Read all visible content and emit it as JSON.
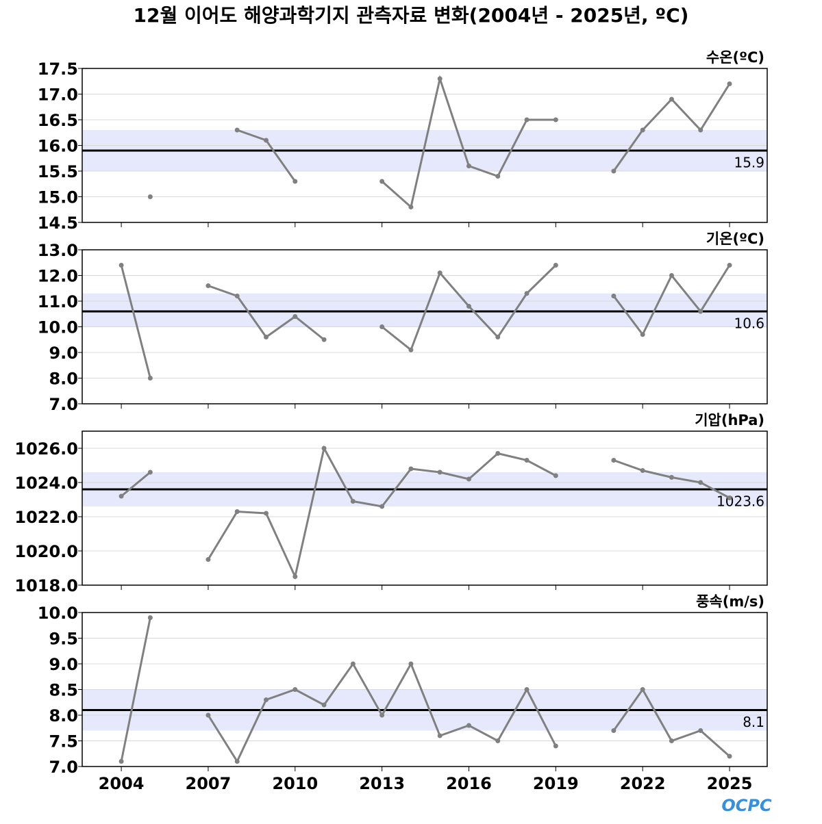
{
  "title": "12월 이어도 해양과학기지 관측자료 변화(2004년 - 2025년, ºC)",
  "logo": "OCPC",
  "chart_data": [
    {
      "type": "line",
      "title": "수온(ºC)",
      "color": "#808080",
      "mean": 15.9,
      "band": [
        15.5,
        16.3
      ],
      "band_color": "#e6e8fc",
      "grid": true,
      "x": [
        2004,
        2005,
        2006,
        2007,
        2008,
        2009,
        2010,
        2011,
        2012,
        2013,
        2014,
        2015,
        2016,
        2017,
        2018,
        2019,
        2020,
        2021,
        2022,
        2023,
        2024,
        2025
      ],
      "values": [
        null,
        15.0,
        null,
        null,
        16.3,
        16.1,
        15.3,
        null,
        null,
        15.3,
        14.8,
        17.3,
        15.6,
        15.4,
        16.5,
        16.5,
        null,
        15.5,
        16.3,
        16.9,
        16.3,
        17.2
      ],
      "xlim": [
        2002.65,
        2026.3
      ],
      "xticks": [
        2004,
        2007,
        2010,
        2013,
        2016,
        2019,
        2022,
        2025
      ],
      "ylim": [
        14.5,
        17.5
      ],
      "yticks": [
        14.5,
        {
          "value": 15,
          "label": "15.0"
        },
        15.5,
        {
          "value": 16,
          "label": "16.0"
        },
        16.5,
        {
          "value": 17,
          "label": "17.0"
        },
        17.5
      ]
    },
    {
      "type": "line",
      "title": "기온(ºC)",
      "color": "#808080",
      "mean": 10.6,
      "band": [
        10.0,
        11.3
      ],
      "band_color": "#e6e8fc",
      "grid": true,
      "x": [
        2004,
        2005,
        2006,
        2007,
        2008,
        2009,
        2010,
        2011,
        2012,
        2013,
        2014,
        2015,
        2016,
        2017,
        2018,
        2019,
        2020,
        2021,
        2022,
        2023,
        2024,
        2025
      ],
      "values": [
        12.4,
        8.0,
        null,
        11.6,
        11.2,
        9.6,
        10.4,
        9.5,
        null,
        10.0,
        9.1,
        12.1,
        10.8,
        9.6,
        11.3,
        12.4,
        null,
        11.2,
        9.7,
        12.0,
        10.6,
        12.4
      ],
      "xlim": [
        2002.65,
        2026.3
      ],
      "xticks": [
        2004,
        2007,
        2010,
        2013,
        2016,
        2019,
        2022,
        2025
      ],
      "ylim": [
        7,
        13
      ],
      "yticks": [
        {
          "value": 7,
          "label": "7.0"
        },
        {
          "value": 8,
          "label": "8.0"
        },
        {
          "value": 9,
          "label": "9.0"
        },
        {
          "value": 10,
          "label": "10.0"
        },
        {
          "value": 11,
          "label": "11.0"
        },
        {
          "value": 12,
          "label": "12.0"
        },
        {
          "value": 13,
          "label": "13.0"
        }
      ]
    },
    {
      "type": "line",
      "title": "기압(hPa)",
      "color": "#808080",
      "mean": 1023.6,
      "band": [
        1022.6,
        1024.6
      ],
      "band_color": "#e6e8fc",
      "grid": true,
      "x": [
        2004,
        2005,
        2006,
        2007,
        2008,
        2009,
        2010,
        2011,
        2012,
        2013,
        2014,
        2015,
        2016,
        2017,
        2018,
        2019,
        2020,
        2021,
        2022,
        2023,
        2024,
        2025
      ],
      "values": [
        1023.2,
        1024.6,
        null,
        1019.5,
        1022.3,
        1022.2,
        1018.5,
        1026.0,
        1022.9,
        1022.6,
        1024.8,
        1024.6,
        1024.2,
        1025.7,
        1025.3,
        1024.4,
        null,
        1025.3,
        1024.7,
        1024.3,
        1024.0,
        1023.1
      ],
      "xlim": [
        2002.65,
        2026.3
      ],
      "xticks": [
        2004,
        2007,
        2010,
        2013,
        2016,
        2019,
        2022,
        2025
      ],
      "ylim": [
        1018,
        1027
      ],
      "yticks": [
        {
          "value": 1018,
          "label": "1018.0"
        },
        {
          "value": 1020,
          "label": "1020.0"
        },
        {
          "value": 1022,
          "label": "1022.0"
        },
        {
          "value": 1024,
          "label": "1024.0"
        },
        {
          "value": 1026,
          "label": "1026.0"
        }
      ]
    },
    {
      "type": "line",
      "title": "풍속(m/s)",
      "color": "#808080",
      "mean": 8.1,
      "band": [
        7.7,
        8.5
      ],
      "band_color": "#e6e8fc",
      "grid": true,
      "x": [
        2004,
        2005,
        2006,
        2007,
        2008,
        2009,
        2010,
        2011,
        2012,
        2013,
        2014,
        2015,
        2016,
        2017,
        2018,
        2019,
        2020,
        2021,
        2022,
        2023,
        2024,
        2025
      ],
      "values": [
        7.1,
        9.9,
        null,
        8.0,
        7.1,
        8.3,
        8.5,
        8.2,
        9.0,
        8.0,
        9.0,
        7.6,
        7.8,
        7.5,
        8.5,
        7.4,
        null,
        7.7,
        8.5,
        7.5,
        7.7,
        7.2
      ],
      "xlim": [
        2002.65,
        2026.3
      ],
      "xticks": [
        2004,
        2007,
        2010,
        2013,
        2016,
        2019,
        2022,
        2025
      ],
      "ylim": [
        7,
        10
      ],
      "yticks": [
        {
          "value": 7,
          "label": "7.0"
        },
        7.5,
        {
          "value": 8,
          "label": "8.0"
        },
        8.5,
        {
          "value": 9,
          "label": "9.0"
        },
        9.5,
        {
          "value": 10,
          "label": "10.0"
        }
      ]
    }
  ]
}
